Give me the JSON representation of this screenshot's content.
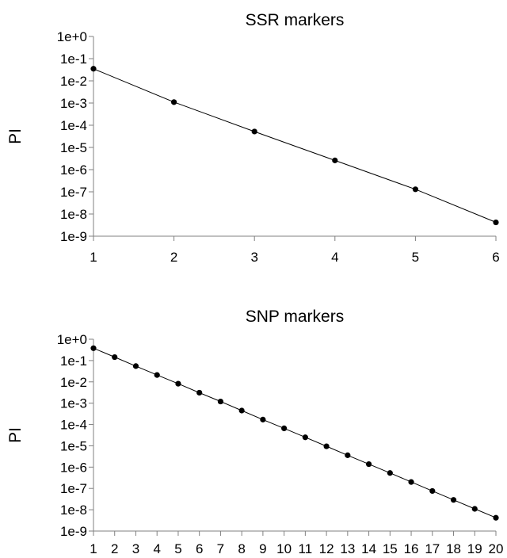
{
  "chart_data": [
    {
      "type": "line",
      "title": "SSR markers",
      "xlabel": "",
      "ylabel": "PI",
      "yscale": "log",
      "ylim": [
        1e-09,
        1
      ],
      "yticks": [
        "1e+0",
        "1e-1",
        "1e-2",
        "1e-3",
        "1e-4",
        "1e-5",
        "1e-6",
        "1e-7",
        "1e-8",
        "1e-9"
      ],
      "xticks": [
        "1",
        "2",
        "3",
        "4",
        "5",
        "6"
      ],
      "xlim": [
        1,
        6
      ],
      "grid": false,
      "series": [
        {
          "x": [
            1,
            2,
            3,
            4,
            5,
            6
          ],
          "y": [
            0.035,
            0.0011,
            5.2e-05,
            2.6e-06,
            1.3e-07,
            4.2e-09
          ]
        }
      ]
    },
    {
      "type": "line",
      "title": "SNP markers",
      "xlabel": "",
      "ylabel": "PI",
      "yscale": "log",
      "ylim": [
        1e-09,
        1
      ],
      "yticks": [
        "1e+0",
        "1e-1",
        "1e-2",
        "1e-3",
        "1e-4",
        "1e-5",
        "1e-6",
        "1e-7",
        "1e-8",
        "1e-9"
      ],
      "xticks": [
        "1",
        "2",
        "3",
        "4",
        "5",
        "6",
        "7",
        "8",
        "9",
        "10",
        "11",
        "12",
        "13",
        "14",
        "15",
        "16",
        "17",
        "18",
        "19",
        "20"
      ],
      "xlim": [
        1,
        20
      ],
      "grid": false,
      "series": [
        {
          "x": [
            1,
            2,
            3,
            4,
            5,
            6,
            7,
            8,
            9,
            10,
            11,
            12,
            13,
            14,
            15,
            16,
            17,
            18,
            19,
            20
          ],
          "y": [
            0.38,
            0.145,
            0.055,
            0.021,
            0.0082,
            0.0031,
            0.0012,
            0.00045,
            0.00017,
            6.6e-05,
            2.5e-05,
            9.5e-06,
            3.6e-06,
            1.38e-06,
            5.3e-07,
            2e-07,
            7.6e-08,
            2.9e-08,
            1.1e-08,
            4.2e-09
          ]
        }
      ]
    }
  ]
}
